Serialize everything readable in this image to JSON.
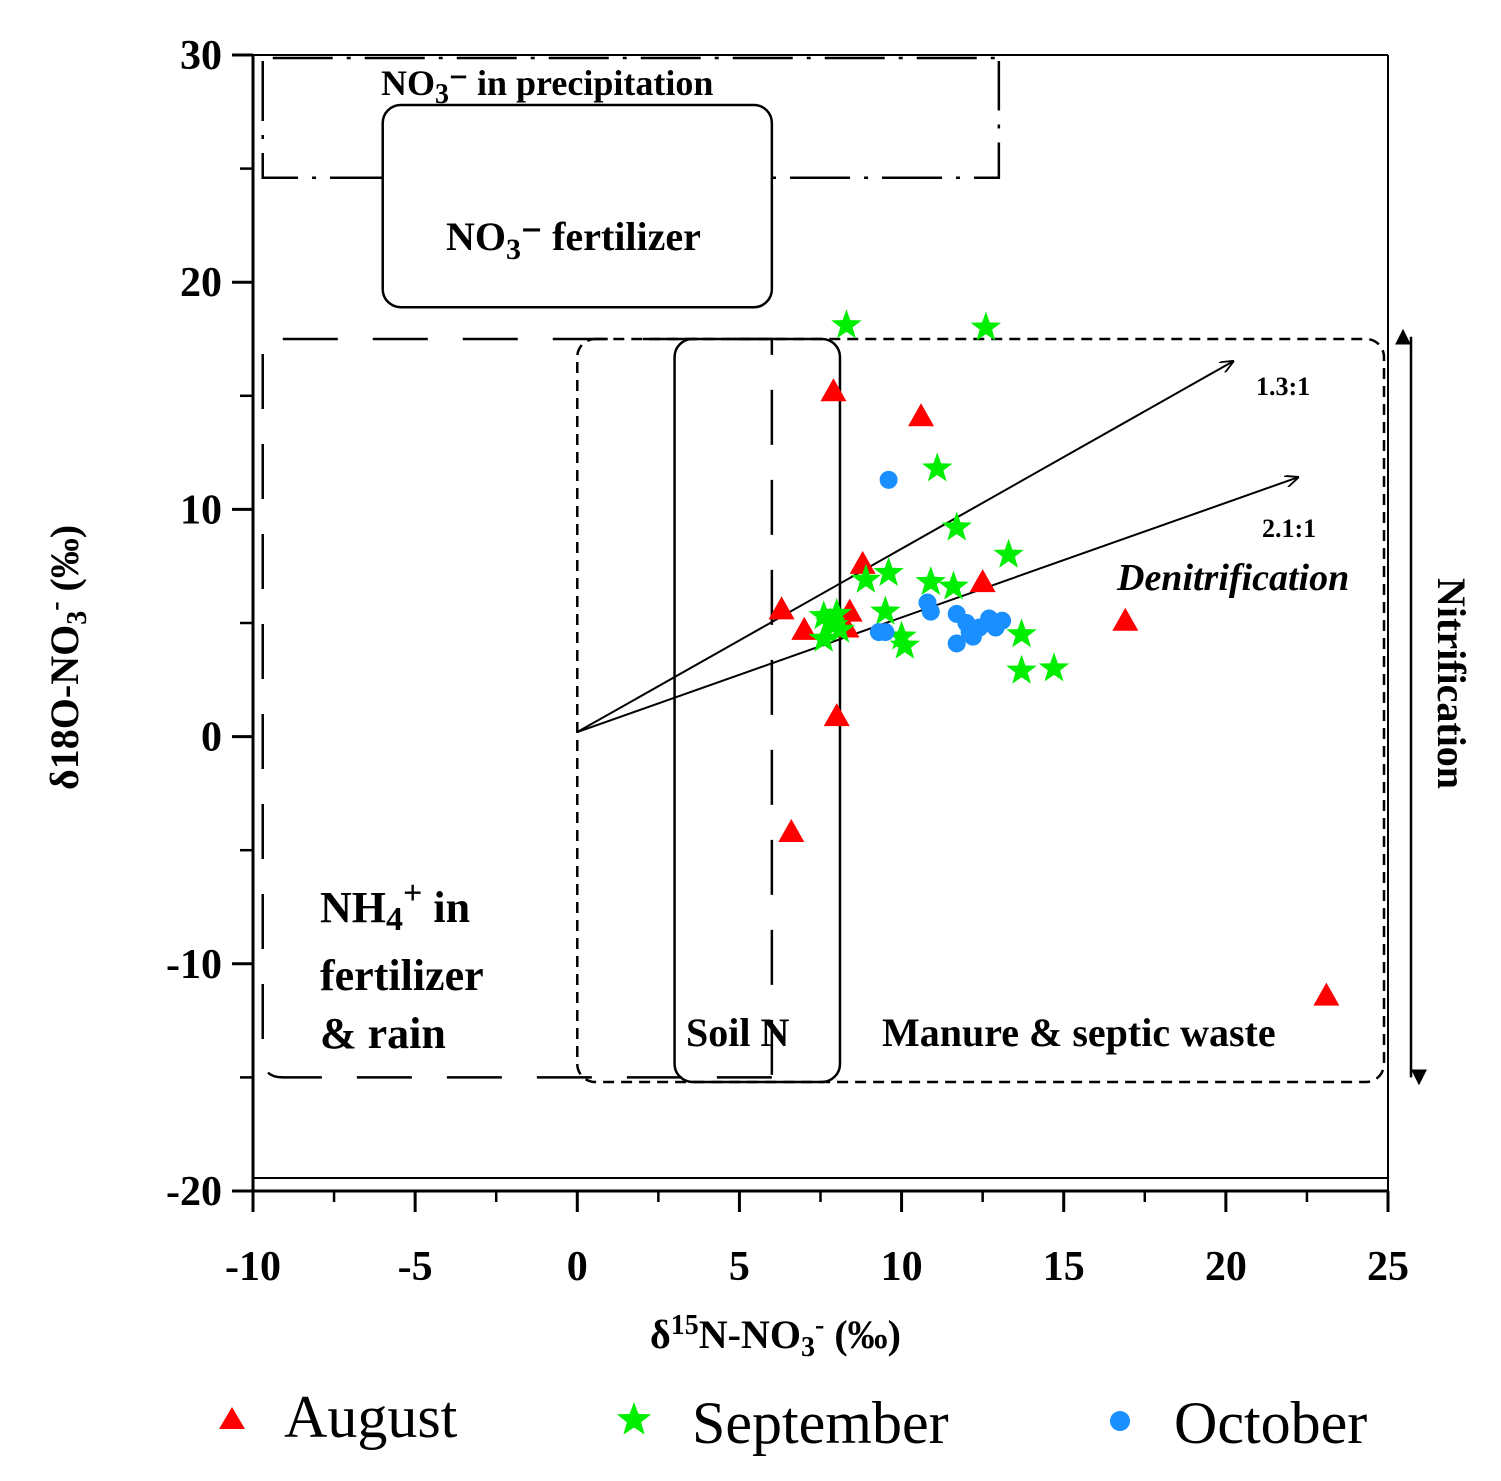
{
  "chart_data": {
    "type": "scatter",
    "title": "",
    "xlabel": {
      "text": "δ15N-NO3- (‰)",
      "parts": [
        "δ",
        "15",
        "N-NO",
        "3",
        "-",
        " (‰)"
      ]
    },
    "ylabel": {
      "text": "δ18O-NO3- (‰)",
      "parts": [
        "δ18O-NO",
        "3",
        "-",
        " (‰)"
      ]
    },
    "xlim": [
      -10,
      25
    ],
    "ylim": [
      -20,
      30
    ],
    "xticks": [
      -10,
      -5,
      0,
      5,
      10,
      15,
      20,
      25
    ],
    "yticks": [
      -20,
      -10,
      0,
      10,
      20,
      30
    ],
    "xtick_labels": [
      "-10",
      "-5",
      "0",
      "5",
      "10",
      "15",
      "20",
      "25"
    ],
    "ytick_labels": [
      "-20",
      "-10",
      "0",
      "10",
      "20",
      "30"
    ],
    "series": [
      {
        "name": "August",
        "marker": "triangle",
        "color": "#ff0000",
        "points": [
          [
            7.9,
            15.2
          ],
          [
            10.6,
            14.1
          ],
          [
            8.8,
            7.6
          ],
          [
            12.5,
            6.8
          ],
          [
            6.3,
            5.6
          ],
          [
            8.4,
            5.5
          ],
          [
            7.0,
            4.7
          ],
          [
            8.3,
            4.8
          ],
          [
            16.9,
            5.1
          ],
          [
            8.0,
            0.9
          ],
          [
            6.6,
            -4.2
          ],
          [
            23.1,
            -11.4
          ]
        ]
      },
      {
        "name": "September",
        "marker": "star",
        "color": "#00ee00",
        "points": [
          [
            8.3,
            18.1
          ],
          [
            12.6,
            18.0
          ],
          [
            11.1,
            11.8
          ],
          [
            11.7,
            9.2
          ],
          [
            13.3,
            8.0
          ],
          [
            9.6,
            7.2
          ],
          [
            8.9,
            6.9
          ],
          [
            10.9,
            6.8
          ],
          [
            11.6,
            6.6
          ],
          [
            9.5,
            5.5
          ],
          [
            7.6,
            5.3
          ],
          [
            8.0,
            5.4
          ],
          [
            7.8,
            5.0
          ],
          [
            8.1,
            4.7
          ],
          [
            7.6,
            4.3
          ],
          [
            7.9,
            4.9
          ],
          [
            10.0,
            4.4
          ],
          [
            10.1,
            4.0
          ],
          [
            13.7,
            4.5
          ],
          [
            13.7,
            2.9
          ],
          [
            14.7,
            3.0
          ]
        ]
      },
      {
        "name": "October",
        "marker": "circle",
        "color": "#1a8fff",
        "points": [
          [
            9.6,
            11.3
          ],
          [
            10.8,
            5.9
          ],
          [
            10.9,
            5.5
          ],
          [
            11.7,
            5.4
          ],
          [
            12.0,
            5.0
          ],
          [
            12.4,
            4.8
          ],
          [
            12.2,
            4.4
          ],
          [
            12.7,
            5.2
          ],
          [
            13.1,
            5.1
          ],
          [
            12.9,
            4.8
          ],
          [
            11.7,
            4.1
          ],
          [
            9.3,
            4.6
          ],
          [
            9.5,
            4.6
          ],
          [
            12.1,
            4.6
          ]
        ]
      }
    ],
    "regions": [
      {
        "name": "NO3- in precipitation",
        "label": "NO3⁻ in precipitation",
        "parts": [
          "NO",
          "3",
          "⁻ in precipitation"
        ],
        "x": [
          -9.7,
          13
        ],
        "y": [
          24.6,
          30
        ],
        "style": "dash-dot"
      },
      {
        "name": "NO3- fertilizer",
        "label": "NO3⁻ fertilizer",
        "parts": [
          "NO",
          "3",
          "⁻ fertilizer"
        ],
        "x": [
          -6,
          6
        ],
        "y": [
          18.9,
          27.8
        ],
        "style": "solid-rounded"
      },
      {
        "name": "NH4+ in fertilizer & rain",
        "label": "NH4+ in fertilizer & rain",
        "parts": [
          "NH",
          "4",
          "+",
          " in",
          "fertilizer",
          "& rain"
        ],
        "x": [
          -9.7,
          6
        ],
        "y": [
          -15,
          17.5
        ],
        "style": "long-dash"
      },
      {
        "name": "Soil N",
        "label": "Soil N",
        "x": [
          3,
          8.1
        ],
        "y": [
          -15.2,
          17.5
        ],
        "style": "solid-rounded"
      },
      {
        "name": "Manure & septic waste",
        "label": "Manure & septic waste",
        "x": [
          0,
          25
        ],
        "y": [
          -15.2,
          17.5
        ],
        "style": "short-dash"
      }
    ],
    "arrows": [
      {
        "name": "1.3:1",
        "label": "1.3:1",
        "from": [
          0,
          0.2
        ],
        "to": [
          20.2,
          16.5
        ]
      },
      {
        "name": "2.1:1",
        "label": "2.1:1",
        "from": [
          0,
          0.2
        ],
        "to": [
          22.2,
          11.4
        ]
      }
    ],
    "annotations": {
      "denitrification": "Denitrification",
      "nitrification": "Nitrification"
    },
    "nitrification_range": [
      -15.0,
      17.6
    ],
    "legend": {
      "position": "bottom",
      "entries": [
        "August",
        "September",
        "October"
      ]
    }
  }
}
